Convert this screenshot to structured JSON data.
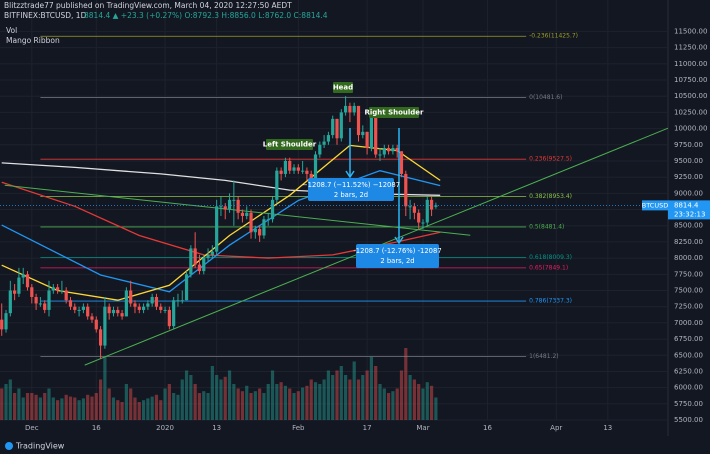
{
  "chart_data": {
    "type": "candlestick",
    "title": "Blitzztrade77 published on TradingView.com, March 04, 2020 12:27:50 AEDT",
    "symbol": "BITFINEX:BTCUSD, 1D",
    "quote": "8814.4 ▲ +23.3 (+0.27%) O:8792.3 H:8856.0 L:8762.0 C:8814.4",
    "indicators": [
      "Vol",
      "Mango Ribbon"
    ],
    "branding": "TradingView",
    "up_color": "#26a69a",
    "down_color": "#ef5350",
    "xlim": [
      -7.4,
      148
    ],
    "xticks": [
      {
        "value": 0,
        "label": "Dec"
      },
      {
        "value": 15,
        "label": "16"
      },
      {
        "value": 31,
        "label": "2020"
      },
      {
        "value": 43,
        "label": "13"
      },
      {
        "value": 62,
        "label": "Feb"
      },
      {
        "value": 78,
        "label": "17"
      },
      {
        "value": 91,
        "label": "Mar"
      },
      {
        "value": 106,
        "label": "16"
      },
      {
        "value": 122,
        "label": "Apr"
      },
      {
        "value": 134,
        "label": "13"
      }
    ],
    "ylim": [
      5300,
      11800
    ],
    "yticks": [
      {
        "value": 5500,
        "label": "5500.00"
      },
      {
        "value": 5750,
        "label": "5750.00"
      },
      {
        "value": 6000,
        "label": "6000.00"
      },
      {
        "value": 6250,
        "label": "6250.00"
      },
      {
        "value": 6500,
        "label": "6500.00"
      },
      {
        "value": 6750,
        "label": "6750.00"
      },
      {
        "value": 7000,
        "label": "7000.00"
      },
      {
        "value": 7250,
        "label": "7250.00"
      },
      {
        "value": 7500,
        "label": "7500.00"
      },
      {
        "value": 7750,
        "label": "7750.00"
      },
      {
        "value": 8000,
        "label": "8000.00"
      },
      {
        "value": 8250,
        "label": "8250.00"
      },
      {
        "value": 8500,
        "label": "8500.00"
      },
      {
        "value": 8750,
        "label": "8750.00"
      },
      {
        "value": 9000,
        "label": "9000.00"
      },
      {
        "value": 9250,
        "label": "9250.00"
      },
      {
        "value": 9500,
        "label": "9500.00"
      },
      {
        "value": 9750,
        "label": "9750.00"
      },
      {
        "value": 10000,
        "label": "10000.00"
      },
      {
        "value": 10250,
        "label": "10250.00"
      },
      {
        "value": 10500,
        "label": "10500.00"
      },
      {
        "value": 10750,
        "label": "10750.00"
      },
      {
        "value": 11000,
        "label": "11000.00"
      },
      {
        "value": 11250,
        "label": "11250.00"
      },
      {
        "value": 11500,
        "label": "11500.00"
      }
    ],
    "x": [
      -7,
      -6,
      -5,
      -4,
      -3,
      -2,
      -1,
      0,
      1,
      2,
      3,
      4,
      5,
      6,
      7,
      8,
      9,
      10,
      11,
      12,
      13,
      14,
      15,
      16,
      17,
      18,
      19,
      20,
      21,
      22,
      23,
      24,
      25,
      26,
      27,
      28,
      29,
      30,
      31,
      32,
      33,
      34,
      35,
      36,
      37,
      38,
      39,
      40,
      41,
      42,
      43,
      44,
      45,
      46,
      47,
      48,
      49,
      50,
      51,
      52,
      53,
      54,
      55,
      56,
      57,
      58,
      59,
      60,
      61,
      62,
      63,
      64,
      65,
      66,
      67,
      68,
      69,
      70,
      71,
      72,
      73,
      74,
      75,
      76,
      77,
      78,
      79,
      80,
      81,
      82,
      83,
      84,
      85,
      86,
      87,
      88,
      89,
      90,
      91,
      92,
      93,
      94
    ],
    "ohlc": [
      [
        7050,
        7300,
        6800,
        6900
      ],
      [
        6900,
        7200,
        6850,
        7150
      ],
      [
        7150,
        7650,
        7100,
        7500
      ],
      [
        7500,
        7600,
        7350,
        7450
      ],
      [
        7450,
        7850,
        7400,
        7700
      ],
      [
        7700,
        7850,
        7600,
        7750
      ],
      [
        7750,
        7800,
        7500,
        7550
      ],
      [
        7550,
        7600,
        7300,
        7400
      ],
      [
        7400,
        7450,
        7200,
        7300
      ],
      [
        7300,
        7400,
        7250,
        7300
      ],
      [
        7300,
        7350,
        7150,
        7200
      ],
      [
        7200,
        7650,
        7100,
        7500
      ],
      [
        7500,
        7600,
        7450,
        7550
      ],
      [
        7550,
        7600,
        7450,
        7500
      ],
      [
        7500,
        7650,
        7450,
        7500
      ],
      [
        7500,
        7550,
        7300,
        7350
      ],
      [
        7350,
        7400,
        7200,
        7250
      ],
      [
        7250,
        7300,
        7150,
        7200
      ],
      [
        7200,
        7250,
        7100,
        7200
      ],
      [
        7200,
        7300,
        7150,
        7250
      ],
      [
        7250,
        7300,
        7050,
        7100
      ],
      [
        7100,
        7150,
        7000,
        7050
      ],
      [
        7050,
        7100,
        6850,
        6900
      ],
      [
        6900,
        6950,
        6450,
        6650
      ],
      [
        6650,
        7400,
        6600,
        7250
      ],
      [
        7250,
        7300,
        7050,
        7150
      ],
      [
        7150,
        7250,
        7100,
        7200
      ],
      [
        7200,
        7250,
        7100,
        7150
      ],
      [
        7150,
        7200,
        7050,
        7100
      ],
      [
        7100,
        7550,
        7100,
        7500
      ],
      [
        7500,
        7650,
        7250,
        7300
      ],
      [
        7300,
        7350,
        7150,
        7250
      ],
      [
        7250,
        7300,
        7150,
        7200
      ],
      [
        7200,
        7300,
        7150,
        7250
      ],
      [
        7250,
        7350,
        7200,
        7300
      ],
      [
        7300,
        7450,
        7250,
        7400
      ],
      [
        7400,
        7450,
        7200,
        7250
      ],
      [
        7250,
        7300,
        7150,
        7200
      ],
      [
        7200,
        7250,
        7150,
        7200
      ],
      [
        7200,
        7250,
        6900,
        6950
      ],
      [
        6950,
        7400,
        6900,
        7350
      ],
      [
        7350,
        7450,
        7250,
        7350
      ],
      [
        7350,
        7500,
        7300,
        7350
      ],
      [
        7350,
        7800,
        7350,
        7750
      ],
      [
        7750,
        8200,
        7700,
        8150
      ],
      [
        8150,
        8400,
        7850,
        7900
      ],
      [
        7900,
        8050,
        7750,
        7800
      ],
      [
        7800,
        8050,
        7750,
        8000
      ],
      [
        8000,
        8150,
        7950,
        8050
      ],
      [
        8050,
        8200,
        8000,
        8100
      ],
      [
        8100,
        8900,
        8050,
        8800
      ],
      [
        8800,
        8950,
        8650,
        8800
      ],
      [
        8800,
        8850,
        8600,
        8750
      ],
      [
        8750,
        9000,
        8700,
        8900
      ],
      [
        8900,
        9200,
        8500,
        8900
      ],
      [
        8900,
        8950,
        8600,
        8700
      ],
      [
        8700,
        8750,
        8550,
        8650
      ],
      [
        8650,
        8800,
        8600,
        8700
      ],
      [
        8700,
        8750,
        8300,
        8400
      ],
      [
        8400,
        8500,
        8300,
        8450
      ],
      [
        8450,
        8500,
        8250,
        8350
      ],
      [
        8350,
        8650,
        8300,
        8600
      ],
      [
        8600,
        8700,
        8500,
        8600
      ],
      [
        8600,
        8950,
        8550,
        8900
      ],
      [
        8900,
        9400,
        8850,
        9350
      ],
      [
        9350,
        9400,
        9200,
        9300
      ],
      [
        9300,
        9550,
        9250,
        9500
      ],
      [
        9500,
        9550,
        9300,
        9350
      ],
      [
        9350,
        9450,
        9300,
        9400
      ],
      [
        9400,
        9450,
        9300,
        9350
      ],
      [
        9350,
        9500,
        9300,
        9350
      ],
      [
        9350,
        9400,
        9200,
        9300
      ],
      [
        9300,
        9350,
        9100,
        9200
      ],
      [
        9200,
        9650,
        9150,
        9600
      ],
      [
        9600,
        9800,
        9550,
        9750
      ],
      [
        9750,
        9900,
        9700,
        9800
      ],
      [
        9800,
        9950,
        9750,
        9900
      ],
      [
        9900,
        10200,
        9850,
        10150
      ],
      [
        10150,
        10150,
        9750,
        9850
      ],
      [
        9850,
        10300,
        9800,
        10250
      ],
      [
        10250,
        10500,
        10200,
        10350
      ],
      [
        10350,
        10400,
        10100,
        10250
      ],
      [
        10250,
        10400,
        10200,
        10350
      ],
      [
        10350,
        10350,
        9800,
        9900
      ],
      [
        9900,
        10050,
        9850,
        9950
      ],
      [
        9950,
        9950,
        9600,
        9700
      ],
      [
        9700,
        10250,
        9650,
        10200
      ],
      [
        10200,
        10250,
        9550,
        9600
      ],
      [
        9600,
        9700,
        9500,
        9600
      ],
      [
        9600,
        9750,
        9550,
        9700
      ],
      [
        9700,
        9750,
        9600,
        9650
      ],
      [
        9650,
        9750,
        9600,
        9700
      ],
      [
        9700,
        9750,
        9550,
        9650
      ],
      [
        9650,
        9650,
        9250,
        9300
      ],
      [
        9300,
        9350,
        8650,
        8800
      ],
      [
        8800,
        8900,
        8600,
        8800
      ],
      [
        8800,
        8850,
        8600,
        8700
      ],
      [
        8700,
        8750,
        8450,
        8550
      ],
      [
        8550,
        8600,
        8450,
        8550
      ],
      [
        8550,
        8950,
        8500,
        8900
      ],
      [
        8900,
        8950,
        8650,
        8750
      ],
      [
        8792.3,
        8856.0,
        8762.0,
        8814.4
      ]
    ],
    "volume_ylim": [
      0,
      100
    ],
    "volume": [
      35,
      40,
      45,
      30,
      35,
      25,
      30,
      30,
      28,
      25,
      30,
      35,
      25,
      22,
      24,
      28,
      26,
      25,
      22,
      24,
      28,
      26,
      30,
      45,
      70,
      35,
      25,
      22,
      20,
      40,
      35,
      25,
      20,
      22,
      24,
      26,
      28,
      22,
      35,
      40,
      30,
      28,
      45,
      55,
      50,
      40,
      30,
      32,
      30,
      60,
      50,
      45,
      48,
      55,
      40,
      35,
      32,
      38,
      30,
      32,
      35,
      30,
      40,
      55,
      40,
      42,
      38,
      35,
      30,
      32,
      36,
      38,
      45,
      42,
      40,
      45,
      55,
      50,
      55,
      60,
      50,
      45,
      65,
      45,
      50,
      55,
      70,
      60,
      40,
      35,
      30,
      32,
      35,
      55,
      80,
      50,
      45,
      40,
      35,
      42,
      38,
      25
    ],
    "overlays": [
      {
        "color": "#e0e0e0",
        "x": [
          -7,
          10,
          30,
          45,
          60,
          75,
          95
        ],
        "values": [
          9470,
          9400,
          9300,
          9200,
          9050,
          9000,
          8970
        ]
      },
      {
        "color": "#e53935",
        "x": [
          -7,
          10,
          25,
          40,
          55,
          70,
          85,
          95
        ],
        "values": [
          9170,
          8800,
          8350,
          8050,
          8000,
          8050,
          8250,
          8400
        ]
      },
      {
        "color": "#2196f3",
        "x": [
          -7,
          16,
          32,
          46,
          62,
          81,
          95
        ],
        "values": [
          8510,
          7740,
          7480,
          8200,
          8890,
          9350,
          9120
        ]
      },
      {
        "color": "#fdd835",
        "x": [
          -7,
          6,
          20,
          32,
          46,
          60,
          74,
          85,
          95
        ],
        "values": [
          7890,
          7500,
          7350,
          7580,
          8350,
          8970,
          9740,
          9660,
          9200
        ]
      }
    ],
    "trend_lines": [
      {
        "color": "#4caf50",
        "x": [
          12.3,
          148
        ],
        "values": [
          6349,
          10006
        ]
      },
      {
        "color": "#4caf50",
        "x": [
          -6.3,
          102
        ],
        "values": [
          9126,
          8354
        ]
      }
    ],
    "fib_levels": [
      {
        "value": 11425.7,
        "label": "-0.236(11425.7)",
        "color": "#9e9d24"
      },
      {
        "value": 10481.6,
        "label": "0(10481.6)",
        "color": "#787b86"
      },
      {
        "value": 9527.5,
        "label": "0.236(9527.5)",
        "color": "#e53935"
      },
      {
        "value": 8953.4,
        "label": "0.382(8953.4)",
        "color": "#8bc34a"
      },
      {
        "value": 8481.4,
        "label": "0.5(8481.4)",
        "color": "#4caf50"
      },
      {
        "value": 8009.3,
        "label": "0.618(8009.3)",
        "color": "#009688"
      },
      {
        "value": 7849.1,
        "label": "0.65(7849.1)",
        "color": "#e91e63"
      },
      {
        "value": 7337.3,
        "label": "0.786(7337.3)",
        "color": "#2196f3"
      },
      {
        "value": 6481.2,
        "label": "1(6481.2)",
        "color": "#787b86"
      }
    ],
    "fib_x": [
      2,
      115
    ],
    "last_price": 8814.4,
    "symbol_tag": "BTCUSD",
    "countdown": "23:32:13",
    "annotations": [
      "Head",
      "Left Shoulder",
      "Right Shoulder"
    ],
    "measures": [
      {
        "text": "−1208.7 (−11.52%) −12087",
        "bars": "2 bars, 2d"
      },
      {
        "text": "-1208.7 (-12.76%) -12087",
        "bars": "2 bars, 2d"
      }
    ]
  }
}
